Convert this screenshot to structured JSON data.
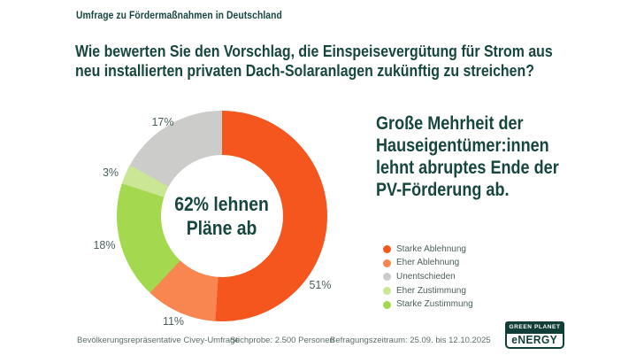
{
  "kicker": "Umfrage zu Fördermaßnahmen in Deutschland",
  "title": "Wie bewerten Sie den Vorschlag, die Einspeisevergütung für Strom aus\nneu installierten privaten Dach-Solaranlagen zukünftig zu streichen?",
  "headline": "Große Mehrheit der\nHauseigentümer:innen\nlehnt abruptes Ende der\nPV-Förderung ab.",
  "chart_data": {
    "type": "pie",
    "title": "Wie bewerten Sie den Vorschlag, die Einspeisevergütung für Strom aus neu installierten privaten Dach-Solaranlagen zukünftig zu streichen?",
    "center_label": "62% lehnen\nPläne ab",
    "donut": true,
    "start_angle_deg": 0,
    "direction": "clockwise",
    "segments": [
      {
        "label": "Starke Ablehnung",
        "value": 51,
        "pct_label": "51%",
        "color": "#F4561E"
      },
      {
        "label": "Eher Ablehnung",
        "value": 11,
        "pct_label": "11%",
        "color": "#F98551"
      },
      {
        "label": "Starke Zustimmung",
        "value": 18,
        "pct_label": "18%",
        "color": "#A4D94F"
      },
      {
        "label": "Eher Zustimmung",
        "value": 3,
        "pct_label": "3%",
        "color": "#CBE795"
      },
      {
        "label": "Unentschieden",
        "value": 17,
        "pct_label": "17%",
        "color": "#CCCCCA"
      }
    ],
    "legend_position": "right"
  },
  "legend": {
    "items": [
      {
        "label": "Starke Ablehnung",
        "color": "#F4561E"
      },
      {
        "label": "Eher Ablehnung",
        "color": "#F98551"
      },
      {
        "label": "Unentschieden",
        "color": "#CCCCCA"
      },
      {
        "label": "Eher Zustimmung",
        "color": "#CBE795"
      },
      {
        "label": "Starke Zustimmung",
        "color": "#A4D94F"
      }
    ]
  },
  "footer": {
    "notes": [
      "Bevölkerungsrepräsentative Civey-Umfrage",
      "Stichprobe: 2.500 Personen",
      "Befragungszeitraum: 25.09. bis 12.10.2025"
    ]
  },
  "logo": {
    "line1": "GREEN PLANET",
    "line2": "eNERGY"
  },
  "colors": {
    "heading_text": "#16463E",
    "muted_text": "#5C6F6C",
    "label_text": "#4C605D",
    "logo_green": "#113E36",
    "background": "#FFFFFF"
  }
}
